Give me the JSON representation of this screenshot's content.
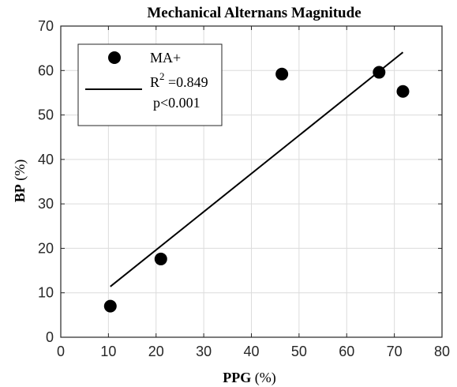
{
  "chart_data": {
    "type": "scatter",
    "title": "Mechanical Alternans Magnitude",
    "xlabel_main": "PPG",
    "xlabel_unit": " (%)",
    "ylabel_main": "BP",
    "ylabel_unit": " (%)",
    "xlim": [
      0,
      80
    ],
    "ylim": [
      0,
      70
    ],
    "xticks": [
      0,
      10,
      20,
      30,
      40,
      50,
      60,
      70,
      80
    ],
    "yticks": [
      0,
      10,
      20,
      30,
      40,
      50,
      60,
      70
    ],
    "grid": true,
    "legend_position": "top-left",
    "series": [
      {
        "name": "MA+",
        "points": [
          {
            "x": 10.4,
            "y": 7.0
          },
          {
            "x": 21.0,
            "y": 17.6
          },
          {
            "x": 46.4,
            "y": 59.2
          },
          {
            "x": 66.8,
            "y": 59.6
          },
          {
            "x": 71.8,
            "y": 55.3
          }
        ]
      }
    ],
    "fit_line": {
      "x": [
        10.4,
        71.8
      ],
      "y": [
        11.4,
        64.1
      ]
    },
    "legend": {
      "marker_label": "MA+",
      "r2_prefix": "R",
      "r2_exponent": "2",
      "r2_value": " =0.849",
      "p_text": "p<0.001"
    },
    "colors": {
      "marker": "#000000",
      "line": "#000000",
      "grid": "#dcdcdc",
      "axes": "#262626"
    }
  }
}
